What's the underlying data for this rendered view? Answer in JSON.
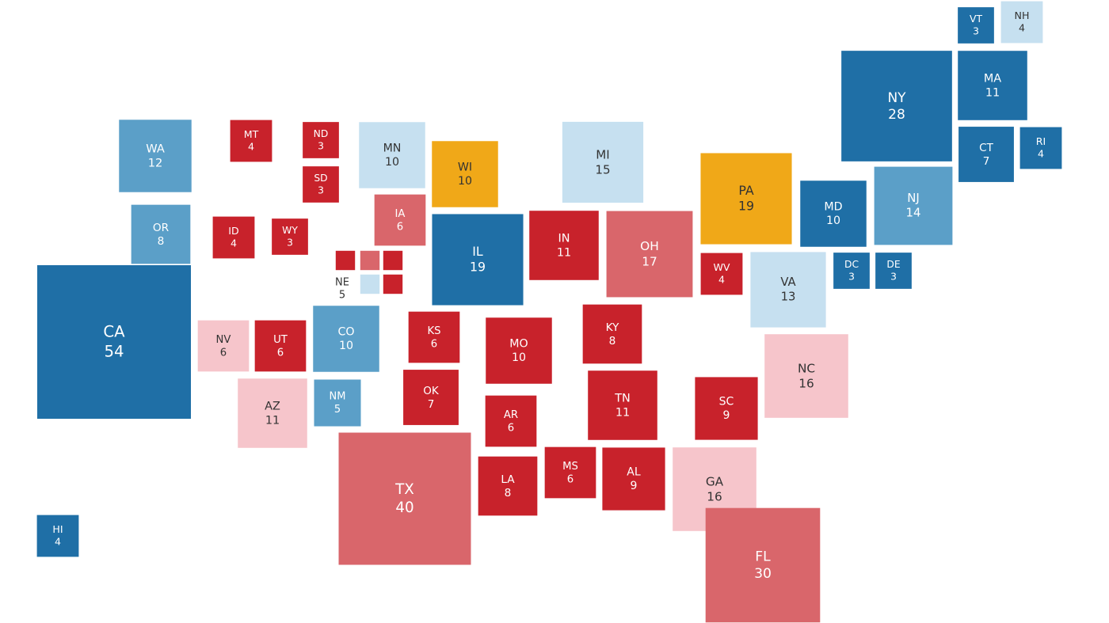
{
  "states": [
    {
      "abbr": "VT",
      "votes": 3,
      "color": "#1f6fa6"
    },
    {
      "abbr": "NH",
      "votes": 4,
      "color": "#c6e0f0"
    },
    {
      "abbr": "NY",
      "votes": 28,
      "color": "#1f6fa6"
    },
    {
      "abbr": "MA",
      "votes": 11,
      "color": "#1f6fa6"
    },
    {
      "abbr": "CT",
      "votes": 7,
      "color": "#1f6fa6"
    },
    {
      "abbr": "RI",
      "votes": 4,
      "color": "#1f6fa6"
    },
    {
      "abbr": "WA",
      "votes": 12,
      "color": "#5b9fc8"
    },
    {
      "abbr": "OR",
      "votes": 8,
      "color": "#5b9fc8"
    },
    {
      "abbr": "CA",
      "votes": 54,
      "color": "#1f6fa6"
    },
    {
      "abbr": "MT",
      "votes": 4,
      "color": "#c8222b"
    },
    {
      "abbr": "ND",
      "votes": 3,
      "color": "#c8222b"
    },
    {
      "abbr": "SD",
      "votes": 3,
      "color": "#c8222b"
    },
    {
      "abbr": "ID",
      "votes": 4,
      "color": "#c8222b"
    },
    {
      "abbr": "WY",
      "votes": 3,
      "color": "#c8222b"
    },
    {
      "abbr": "MN",
      "votes": 10,
      "color": "#c6e0f0"
    },
    {
      "abbr": "WI",
      "votes": 10,
      "color": "#f0a818"
    },
    {
      "abbr": "IA",
      "votes": 6,
      "color": "#d9666b"
    },
    {
      "abbr": "IL",
      "votes": 19,
      "color": "#1f6fa6"
    },
    {
      "abbr": "MI",
      "votes": 15,
      "color": "#c6e0f0"
    },
    {
      "abbr": "IN",
      "votes": 11,
      "color": "#c8222b"
    },
    {
      "abbr": "OH",
      "votes": 17,
      "color": "#d9666b"
    },
    {
      "abbr": "PA",
      "votes": 19,
      "color": "#f0a818"
    },
    {
      "abbr": "MD",
      "votes": 10,
      "color": "#1f6fa6"
    },
    {
      "abbr": "NJ",
      "votes": 14,
      "color": "#5b9fc8"
    },
    {
      "abbr": "WV",
      "votes": 4,
      "color": "#c8222b"
    },
    {
      "abbr": "VA",
      "votes": 13,
      "color": "#c6e0f0"
    },
    {
      "abbr": "DC",
      "votes": 3,
      "color": "#1f6fa6"
    },
    {
      "abbr": "DE",
      "votes": 3,
      "color": "#1f6fa6"
    },
    {
      "abbr": "NV",
      "votes": 6,
      "color": "#f6c5cb"
    },
    {
      "abbr": "UT",
      "votes": 6,
      "color": "#c8222b"
    },
    {
      "abbr": "CO",
      "votes": 10,
      "color": "#5b9fc8"
    },
    {
      "abbr": "AZ",
      "votes": 11,
      "color": "#f6c5cb"
    },
    {
      "abbr": "NM",
      "votes": 5,
      "color": "#5b9fc8"
    },
    {
      "abbr": "KS",
      "votes": 6,
      "color": "#c8222b"
    },
    {
      "abbr": "MO",
      "votes": 10,
      "color": "#c8222b"
    },
    {
      "abbr": "OK",
      "votes": 7,
      "color": "#c8222b"
    },
    {
      "abbr": "AR",
      "votes": 6,
      "color": "#c8222b"
    },
    {
      "abbr": "TX",
      "votes": 40,
      "color": "#d9666b"
    },
    {
      "abbr": "LA",
      "votes": 8,
      "color": "#c8222b"
    },
    {
      "abbr": "MS",
      "votes": 6,
      "color": "#c8222b"
    },
    {
      "abbr": "AL",
      "votes": 9,
      "color": "#c8222b"
    },
    {
      "abbr": "TN",
      "votes": 11,
      "color": "#c8222b"
    },
    {
      "abbr": "KY",
      "votes": 8,
      "color": "#c8222b"
    },
    {
      "abbr": "SC",
      "votes": 9,
      "color": "#c8222b"
    },
    {
      "abbr": "NC",
      "votes": 16,
      "color": "#f6c5cb"
    },
    {
      "abbr": "GA",
      "votes": 16,
      "color": "#f6c5cb"
    },
    {
      "abbr": "FL",
      "votes": 30,
      "color": "#d9666b"
    },
    {
      "abbr": "HI",
      "votes": 4,
      "color": "#1f6fa6"
    },
    {
      "abbr": "NE",
      "votes": 5,
      "pieces": [
        "#c8222b",
        "#d9666b",
        "#c8222b",
        "#c6e0f0",
        "#c8222b"
      ]
    }
  ]
}
